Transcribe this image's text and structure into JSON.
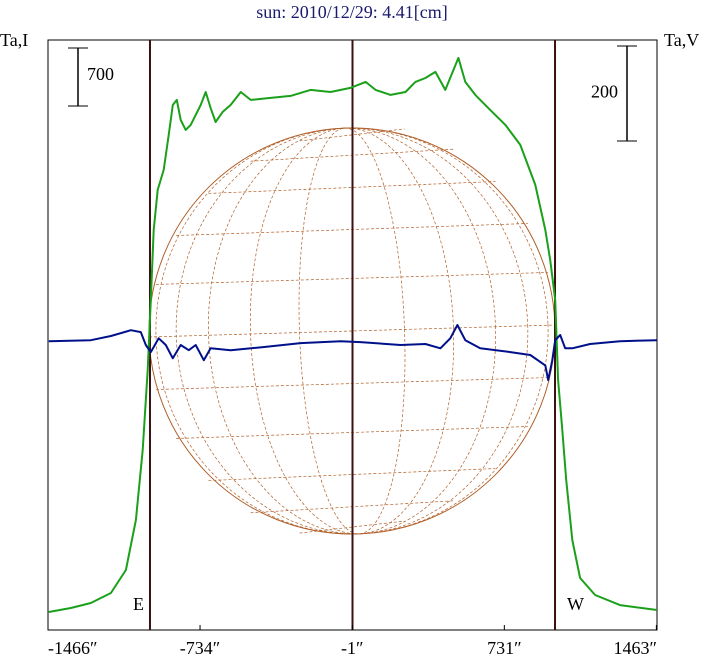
{
  "chart_data": {
    "type": "line",
    "title": "sun: 2010/12/29: 4.41[cm]",
    "y_label": "Ta,I",
    "y2_label": "Ta,V",
    "xlim": [
      -1466,
      1466
    ],
    "xticks": [
      {
        "value": -1466,
        "label": "-1466″"
      },
      {
        "value": -734,
        "label": "-734″"
      },
      {
        "value": -1,
        "label": "-1″"
      },
      {
        "value": 731,
        "label": "731″"
      },
      {
        "value": 1463,
        "label": "1463″"
      }
    ],
    "ylim": [
      -217,
      6903
    ],
    "y2lim": [
      -608,
      634
    ],
    "scale_bars": [
      {
        "value": 700,
        "axis": "y"
      },
      {
        "value": 200,
        "axis": "y2"
      }
    ],
    "vlines": [
      -975,
      0,
      975
    ],
    "limb_labels": [
      {
        "text": "E",
        "x": -975
      },
      {
        "text": "W",
        "x": 975
      }
    ],
    "series": [
      {
        "name": "Ta,I",
        "color": "#1aa01a",
        "axis": "y",
        "x": [
          -1462,
          -1356,
          -1260,
          -1163,
          -1091,
          -1043,
          -1010,
          -986,
          -971,
          -957,
          -938,
          -909,
          -885,
          -865,
          -846,
          -827,
          -803,
          -779,
          -755,
          -731,
          -707,
          -683,
          -659,
          -625,
          -587,
          -538,
          -490,
          -394,
          -298,
          -202,
          -106,
          -10,
          63,
          111,
          183,
          255,
          303,
          351,
          399,
          447,
          510,
          543,
          591,
          663,
          736,
          808,
          880,
          928,
          952,
          976,
          990,
          1010,
          1029,
          1058,
          1096,
          1168,
          1288,
          1466
        ],
        "values": [
          0,
          48,
          109,
          229,
          507,
          1110,
          1955,
          2921,
          3766,
          4611,
          5094,
          5335,
          5757,
          6119,
          6180,
          5938,
          5818,
          5878,
          5999,
          6119,
          6276,
          6083,
          5914,
          6035,
          6119,
          6276,
          6180,
          6204,
          6228,
          6301,
          6276,
          6325,
          6397,
          6301,
          6240,
          6276,
          6397,
          6445,
          6518,
          6301,
          6687,
          6397,
          6240,
          6059,
          5878,
          5637,
          5154,
          4611,
          4249,
          3766,
          2800,
          2197,
          1594,
          869,
          410,
          205,
          84,
          24
        ]
      },
      {
        "name": "Ta,V",
        "color": "#00108a",
        "axis": "y2",
        "x": [
          -1462,
          -1260,
          -1163,
          -1067,
          -1019,
          -995,
          -971,
          -933,
          -899,
          -865,
          -827,
          -788,
          -755,
          -716,
          -683,
          -587,
          -442,
          -250,
          -58,
          38,
          231,
          351,
          423,
          471,
          505,
          543,
          615,
          760,
          856,
          928,
          942,
          962,
          976,
          1000,
          1024,
          1058,
          1144,
          1288,
          1466
        ],
        "values": [
          0,
          2,
          11,
          23,
          19,
          -8,
          -23,
          6,
          -8,
          -36,
          -8,
          -19,
          -8,
          -40,
          -15,
          -19,
          -13,
          -4,
          0,
          -2,
          -8,
          -6,
          -15,
          6,
          34,
          2,
          -15,
          -23,
          -29,
          -51,
          -82,
          -40,
          2,
          13,
          -15,
          -15,
          -6,
          0,
          2
        ]
      }
    ]
  }
}
